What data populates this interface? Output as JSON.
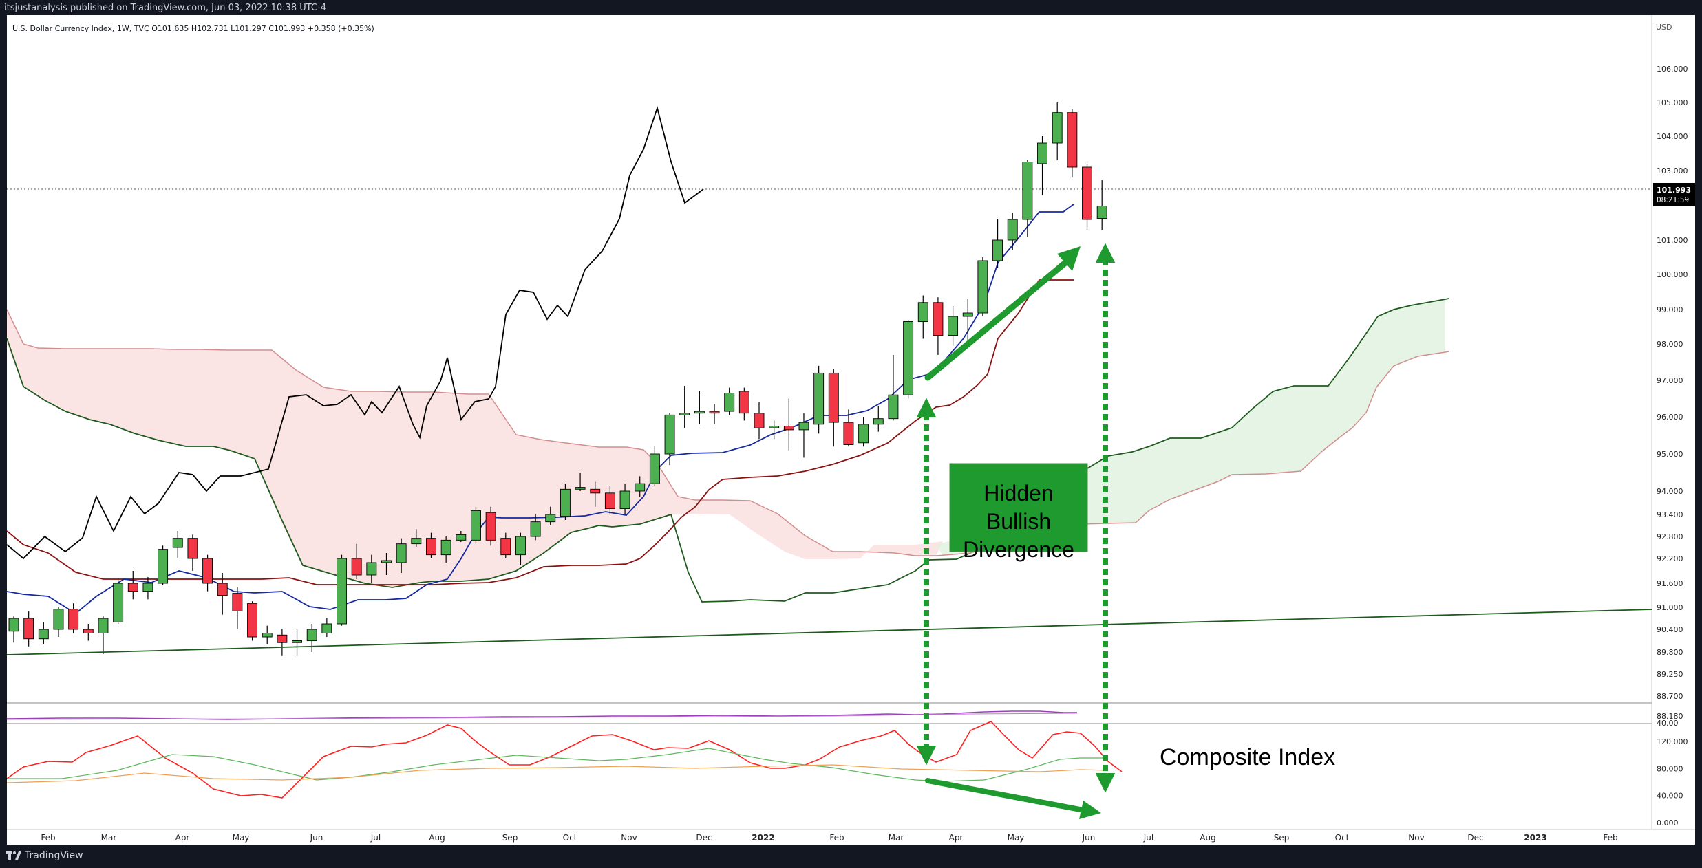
{
  "header": {
    "published": "itsjustanalysis published on TradingView.com, Jun 03, 2022 10:38 UTC-4"
  },
  "footer": {
    "brand": "TradingView"
  },
  "chart_data": {
    "type": "candlestick",
    "symbol_line": "U.S. Dollar Currency Index, 1W, TVC  O101.635  H102.731  L101.297  C101.993  +0.358 (+0.35%)",
    "currency": "USD",
    "last_price": "101.993",
    "countdown": "08:21:59",
    "price_axis": [
      "106.000",
      "105.000",
      "104.000",
      "103.000",
      "101.000",
      "100.000",
      "99.000",
      "98.000",
      "97.000",
      "96.000",
      "95.000",
      "94.000",
      "93.400",
      "92.800",
      "92.200",
      "91.600",
      "91.000",
      "90.400",
      "89.800",
      "89.250",
      "88.700",
      "88.180"
    ],
    "rsi_axis": [
      "40.00"
    ],
    "composite_axis": [
      "120.000",
      "80.000",
      "40.000",
      "0.000"
    ],
    "time_axis": [
      "Feb",
      "Mar",
      "Apr",
      "May",
      "Jun",
      "Jul",
      "Aug",
      "Sep",
      "Oct",
      "Nov",
      "Dec",
      "2022",
      "Feb",
      "Mar",
      "Apr",
      "May",
      "Jun",
      "Jul",
      "Aug",
      "Sep",
      "Oct",
      "Nov",
      "Dec",
      "2023",
      "Feb"
    ],
    "candles": [
      [
        90.35,
        90.7,
        90.05,
        90.75
      ],
      [
        90.7,
        90.15,
        89.95,
        90.9
      ],
      [
        90.15,
        90.4,
        90.0,
        90.6
      ],
      [
        90.4,
        90.95,
        90.2,
        91.0
      ],
      [
        90.95,
        90.4,
        90.3,
        91.1
      ],
      [
        90.4,
        90.3,
        90.1,
        90.55
      ],
      [
        90.3,
        90.7,
        89.75,
        90.75
      ],
      [
        90.6,
        91.6,
        90.55,
        91.7
      ],
      [
        91.6,
        91.4,
        91.2,
        91.9
      ],
      [
        91.4,
        91.6,
        91.2,
        91.75
      ],
      [
        91.6,
        92.45,
        91.55,
        92.55
      ],
      [
        92.5,
        92.75,
        92.2,
        92.95
      ],
      [
        92.75,
        92.2,
        91.9,
        92.85
      ],
      [
        92.2,
        91.6,
        91.4,
        92.3
      ],
      [
        91.6,
        91.3,
        90.8,
        91.85
      ],
      [
        91.35,
        90.9,
        90.4,
        91.5
      ],
      [
        91.1,
        90.2,
        90.1,
        91.15
      ],
      [
        90.2,
        90.3,
        90.0,
        90.5
      ],
      [
        90.25,
        90.05,
        89.7,
        90.4
      ],
      [
        90.05,
        90.1,
        89.7,
        90.4
      ],
      [
        90.1,
        90.4,
        89.8,
        90.55
      ],
      [
        90.3,
        90.55,
        90.2,
        90.7
      ],
      [
        90.55,
        92.2,
        90.5,
        92.3
      ],
      [
        92.2,
        91.8,
        91.7,
        92.6
      ],
      [
        91.8,
        92.1,
        91.6,
        92.3
      ],
      [
        92.1,
        92.15,
        91.8,
        92.35
      ],
      [
        92.1,
        92.6,
        91.85,
        92.75
      ],
      [
        92.6,
        92.75,
        92.5,
        93.0
      ],
      [
        92.75,
        92.3,
        92.2,
        92.9
      ],
      [
        92.3,
        92.7,
        92.1,
        92.8
      ],
      [
        92.7,
        92.85,
        92.65,
        92.95
      ],
      [
        92.7,
        93.5,
        92.6,
        93.6
      ],
      [
        93.45,
        92.7,
        92.55,
        93.6
      ],
      [
        92.75,
        92.3,
        92.2,
        92.9
      ],
      [
        92.3,
        92.8,
        92.05,
        92.9
      ],
      [
        92.8,
        93.2,
        92.7,
        93.4
      ],
      [
        93.2,
        93.4,
        93.1,
        93.6
      ],
      [
        93.35,
        94.05,
        93.25,
        94.2
      ],
      [
        94.05,
        94.1,
        94.0,
        94.5
      ],
      [
        94.05,
        93.95,
        93.6,
        94.25
      ],
      [
        93.95,
        93.55,
        93.4,
        94.15
      ],
      [
        93.55,
        94.0,
        93.4,
        94.2
      ],
      [
        94.0,
        94.2,
        93.85,
        94.4
      ],
      [
        94.2,
        95.0,
        94.15,
        95.2
      ],
      [
        95.0,
        96.05,
        94.7,
        96.1
      ],
      [
        96.05,
        96.1,
        95.7,
        96.85
      ],
      [
        96.1,
        96.15,
        95.8,
        96.7
      ],
      [
        96.15,
        96.1,
        95.8,
        96.35
      ],
      [
        96.15,
        96.65,
        96.05,
        96.8
      ],
      [
        96.7,
        96.1,
        95.9,
        96.8
      ],
      [
        96.1,
        95.7,
        95.4,
        96.4
      ],
      [
        95.7,
        95.75,
        95.4,
        95.9
      ],
      [
        95.75,
        95.65,
        95.1,
        96.5
      ],
      [
        95.65,
        95.85,
        94.9,
        96.1
      ],
      [
        95.8,
        97.2,
        95.55,
        97.4
      ],
      [
        97.2,
        95.85,
        95.2,
        97.3
      ],
      [
        95.85,
        95.25,
        95.2,
        96.2
      ],
      [
        95.3,
        95.8,
        95.2,
        96.0
      ],
      [
        95.8,
        95.95,
        95.6,
        96.3
      ],
      [
        95.95,
        96.6,
        95.9,
        97.7
      ],
      [
        96.6,
        98.65,
        96.5,
        98.7
      ],
      [
        98.65,
        99.2,
        98.15,
        99.4
      ],
      [
        99.2,
        98.25,
        97.7,
        99.35
      ],
      [
        98.25,
        98.8,
        97.95,
        99.1
      ],
      [
        98.8,
        98.9,
        98.0,
        99.3
      ],
      [
        98.9,
        100.4,
        98.8,
        100.5
      ],
      [
        100.4,
        101.0,
        100.2,
        101.6
      ],
      [
        101.0,
        101.6,
        100.7,
        101.8
      ],
      [
        101.6,
        103.25,
        101.1,
        103.3
      ],
      [
        103.2,
        103.8,
        102.3,
        104.0
      ],
      [
        103.8,
        104.7,
        103.3,
        105.0
      ],
      [
        104.7,
        103.1,
        102.8,
        104.8
      ],
      [
        103.1,
        101.6,
        101.3,
        103.2
      ],
      [
        101.63,
        101.99,
        101.3,
        102.73
      ]
    ]
  }
}
